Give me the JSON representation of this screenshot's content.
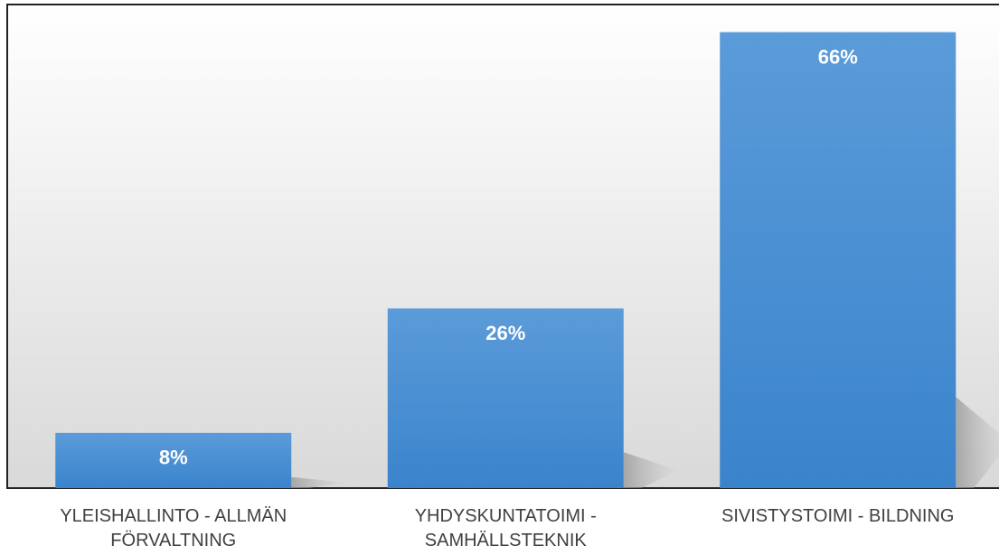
{
  "chart_data": {
    "type": "bar",
    "categories": [
      "YLEISHALLINTO - ALLMÄN FÖRVALTNING",
      "YHDYSKUNTATOIMI - SAMHÄLLSTEKNIK",
      "SIVISTYSTOIMI - BILDNING"
    ],
    "values": [
      8,
      26,
      66
    ],
    "value_labels": [
      "8%",
      "26%",
      "66%"
    ],
    "color": "#4a8fd4",
    "ylim": [
      0,
      70
    ]
  }
}
